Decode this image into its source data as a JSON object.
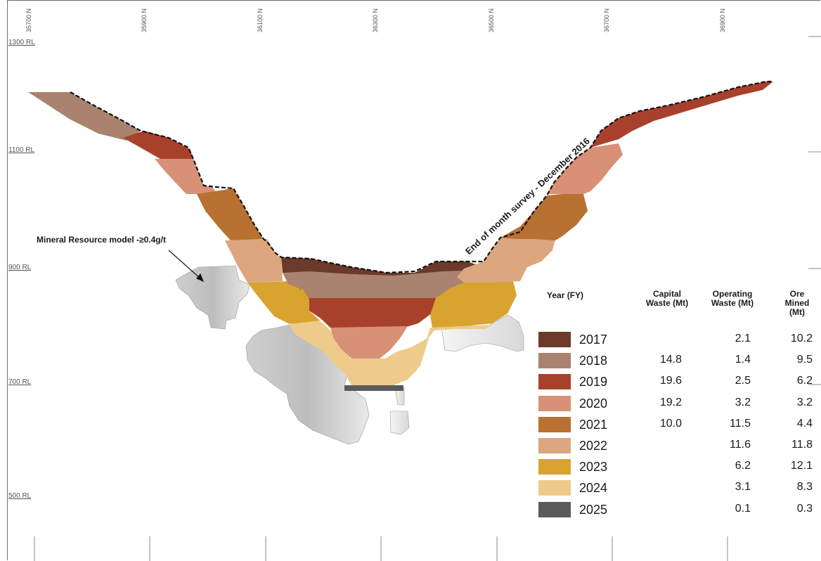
{
  "axes": {
    "rl_labels": [
      "1300 RL",
      "1100 RL",
      "900 RL",
      "700 RL",
      "500 RL"
    ],
    "northings": [
      "35700 N",
      "35900 N",
      "36100 N",
      "36300 N",
      "36500 N",
      "36700 N",
      "36900 N"
    ]
  },
  "annotations": {
    "resource_model": "Mineral Resource model -≥0.4g/t",
    "survey": "End of month survey - December 2016"
  },
  "table": {
    "headers": {
      "year": "Year (FY)",
      "capital": "Capital Waste (Mt)",
      "operating": "Operating Waste (Mt)",
      "ore": "Ore Mined (Mt)"
    },
    "rows": [
      {
        "year": "2017",
        "capital": "",
        "operating": "2.1",
        "ore": "10.2",
        "color": "#6b3a2a"
      },
      {
        "year": "2018",
        "capital": "14.8",
        "operating": "1.4",
        "ore": "9.5",
        "color": "#a9836f"
      },
      {
        "year": "2019",
        "capital": "19.6",
        "operating": "2.5",
        "ore": "6.2",
        "color": "#a8412b"
      },
      {
        "year": "2020",
        "capital": "19.2",
        "operating": "3.2",
        "ore": "3.2",
        "color": "#d89077"
      },
      {
        "year": "2021",
        "capital": "10.0",
        "operating": "11.5",
        "ore": "4.4",
        "color": "#b87130"
      },
      {
        "year": "2022",
        "capital": "",
        "operating": "11.6",
        "ore": "11.8",
        "color": "#dca67f"
      },
      {
        "year": "2023",
        "capital": "",
        "operating": "6.2",
        "ore": "12.1",
        "color": "#d8a42f"
      },
      {
        "year": "2024",
        "capital": "",
        "operating": "3.1",
        "ore": "8.3",
        "color": "#eecb8b"
      },
      {
        "year": "2025",
        "capital": "",
        "operating": "0.1",
        "ore": "0.3",
        "color": "#5a5a5a"
      }
    ]
  }
}
